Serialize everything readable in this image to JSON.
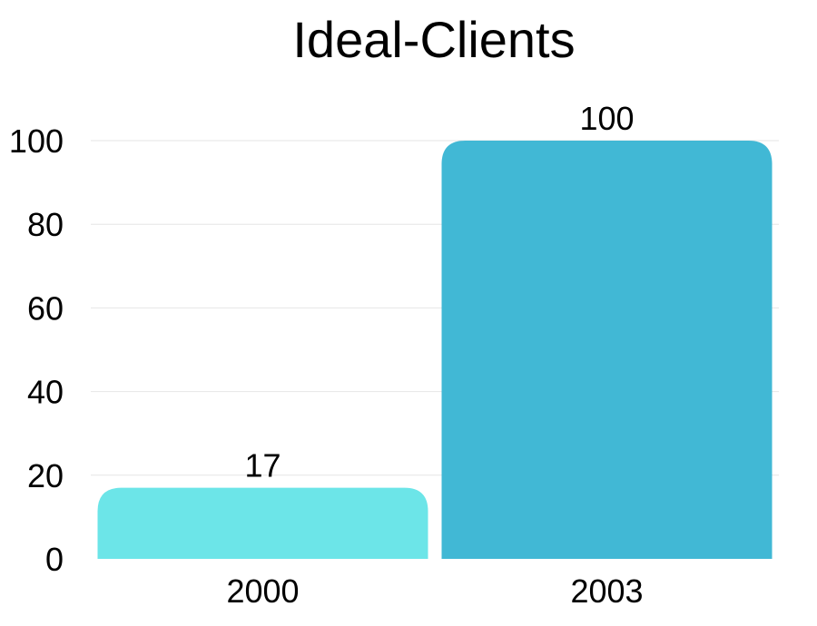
{
  "chart_data": {
    "type": "bar",
    "title": "Ideal-Clients",
    "xlabel": "",
    "ylabel": "",
    "categories": [
      "2000",
      "2003"
    ],
    "values": [
      17,
      100
    ],
    "data_labels": [
      "17",
      "100"
    ],
    "colors": [
      "#6ce5e8",
      "#41b8d5"
    ],
    "ylim": [
      0,
      100
    ],
    "yticks": [
      0,
      20,
      40,
      60,
      80,
      100
    ],
    "ytick_labels": [
      "0",
      "20",
      "40",
      "60",
      "80",
      "100"
    ],
    "grid": true,
    "legend": "none"
  }
}
